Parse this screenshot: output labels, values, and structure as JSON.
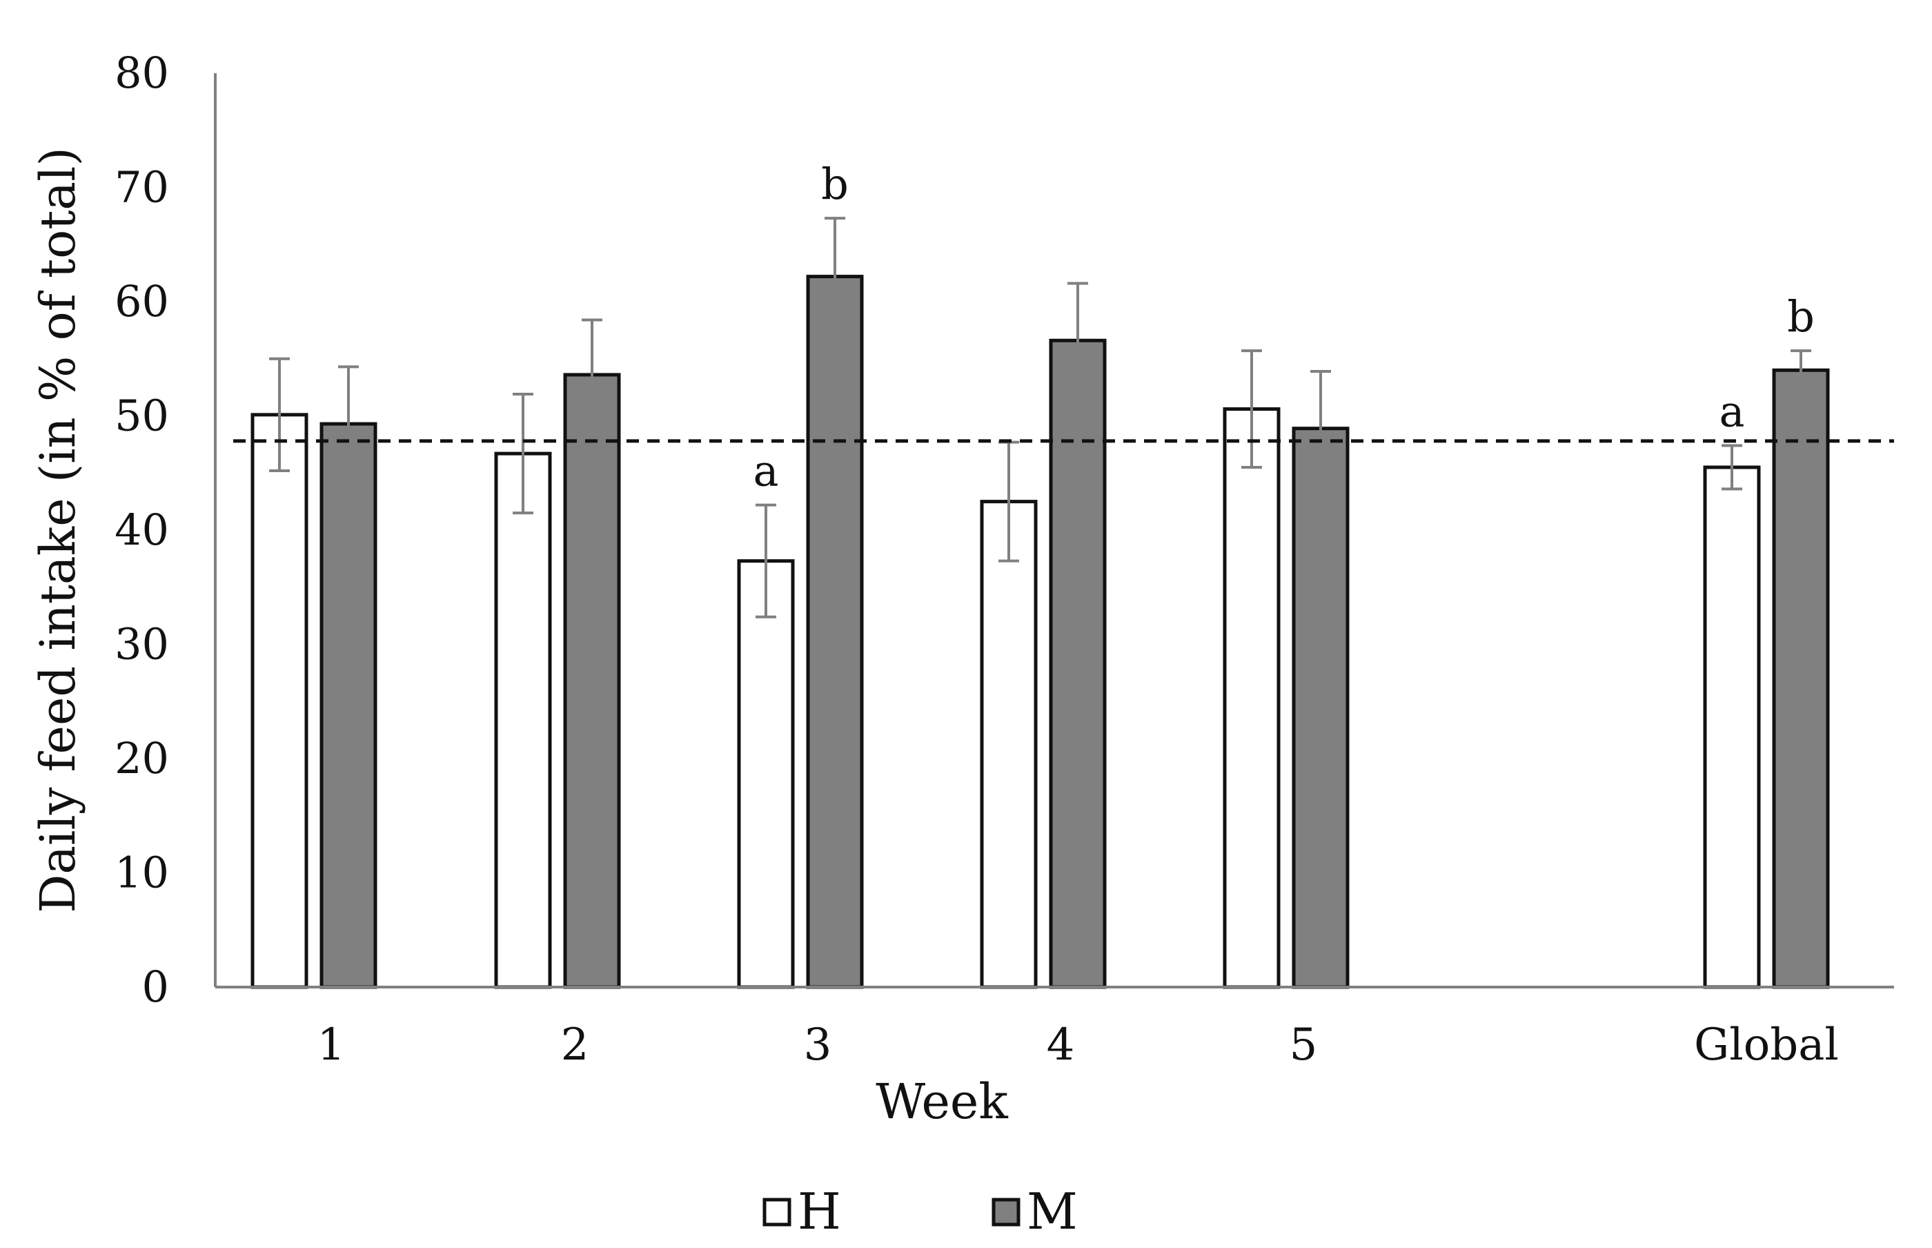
{
  "chart_data": {
    "type": "bar",
    "title": "",
    "xlabel": "Week",
    "ylabel": "Daily feed intake (in % of total)",
    "ylim": [
      0,
      80
    ],
    "yticks": [
      "0",
      "10",
      "20",
      "30",
      "40",
      "50",
      "60",
      "70",
      "80"
    ],
    "categories": [
      "1",
      "2",
      "3",
      "4",
      "5",
      "Global"
    ],
    "series": [
      {
        "name": "H",
        "color": "#ffffff",
        "values": [
          50.1,
          46.7,
          37.3,
          42.5,
          50.6,
          45.5
        ],
        "errors": [
          4.9,
          5.2,
          4.9,
          5.2,
          5.1,
          1.9
        ],
        "labels": [
          "",
          "",
          "a",
          "",
          "",
          "a"
        ]
      },
      {
        "name": "M",
        "color": "#808080",
        "values": [
          49.3,
          53.6,
          62.2,
          56.6,
          48.9,
          54.0
        ],
        "errors": [
          5.0,
          4.8,
          5.1,
          5.0,
          5.0,
          1.7
        ],
        "labels": [
          "",
          "",
          "b",
          "",
          "",
          "b"
        ]
      }
    ],
    "reference_line": {
      "value": 47.8,
      "style": "dashed"
    },
    "grid": false,
    "legend_position": "bottom-center"
  }
}
